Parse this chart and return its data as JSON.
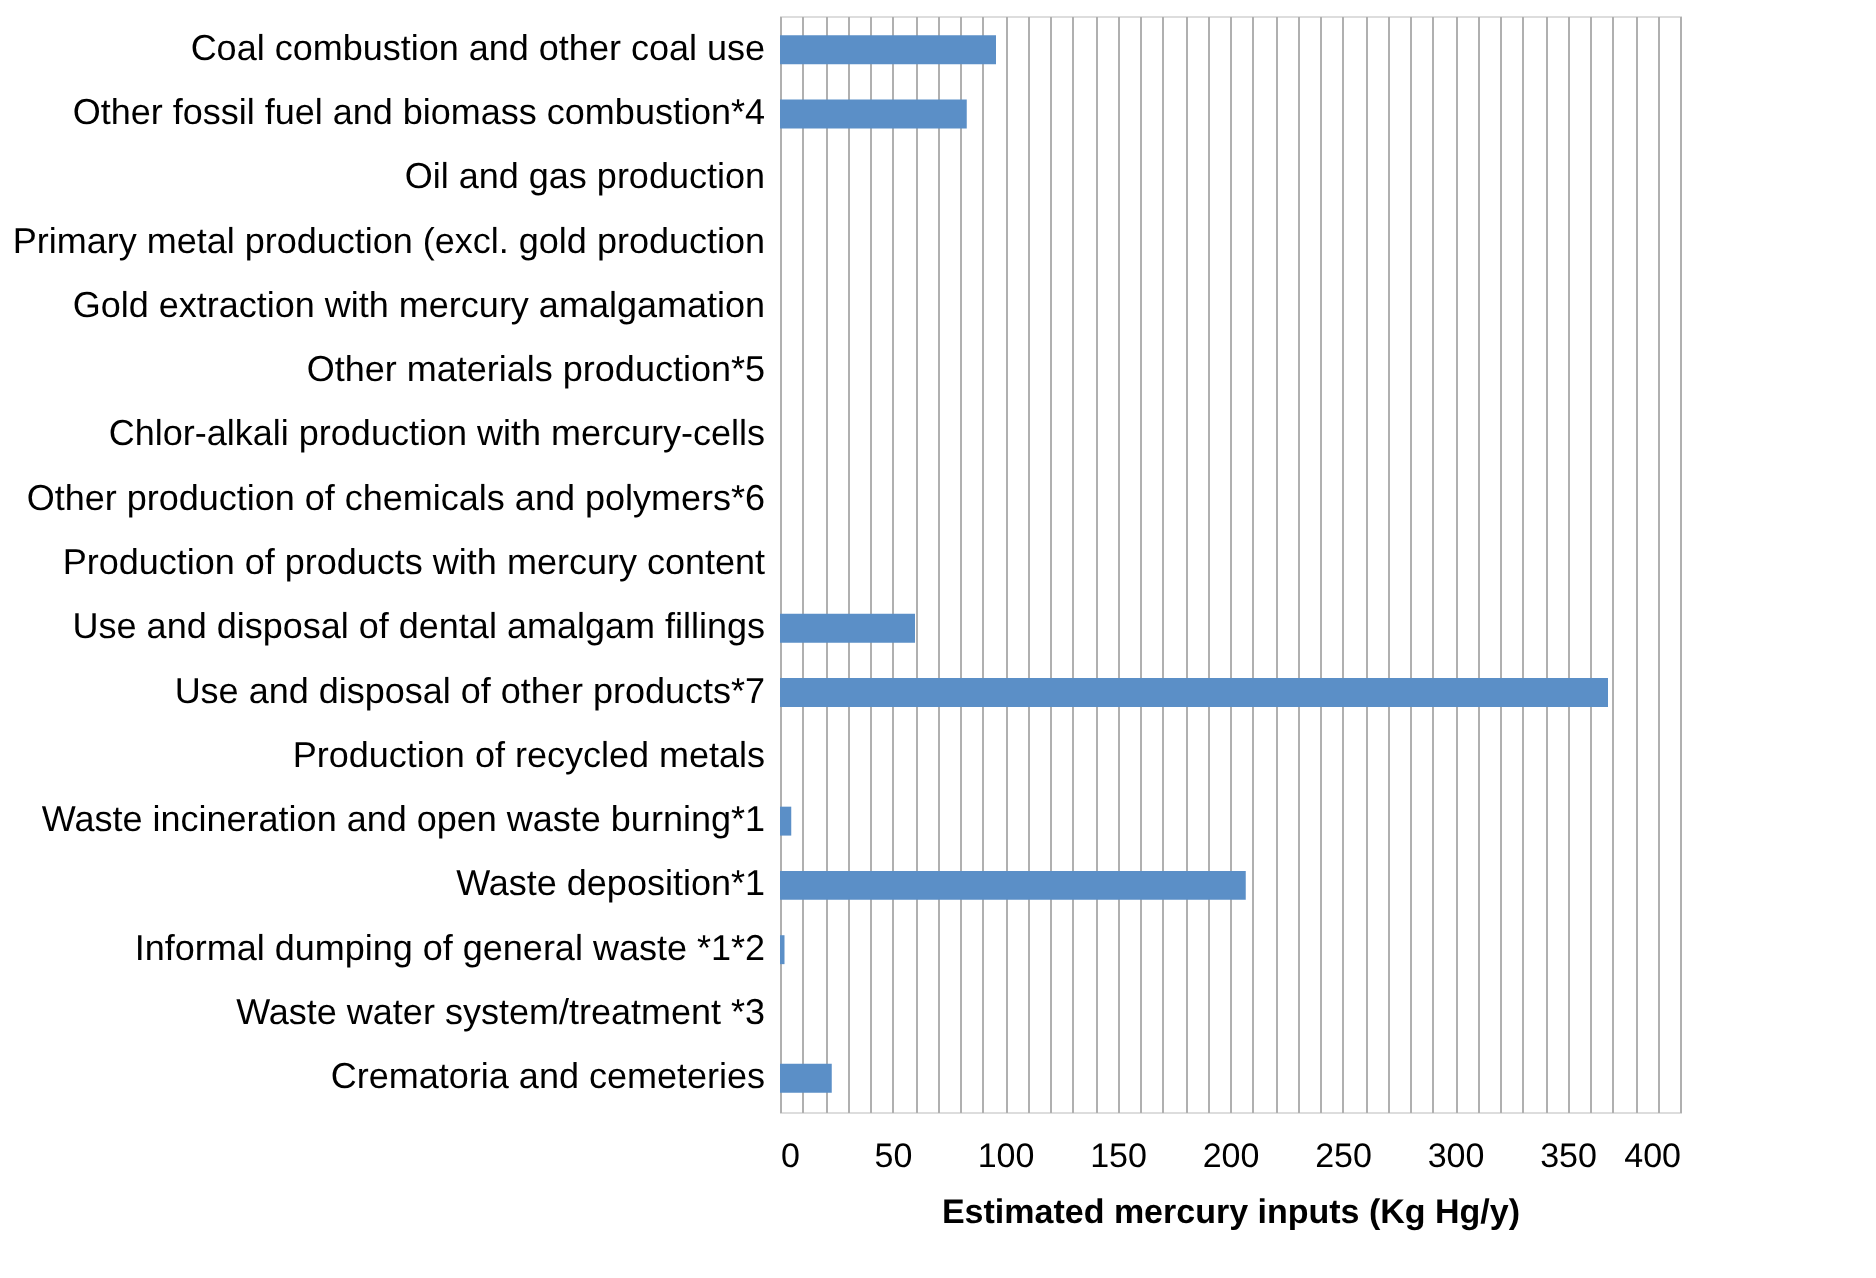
{
  "chart_data": {
    "type": "bar",
    "orientation": "horizontal",
    "xlabel": "Estimated mercury inputs (Kg Hg/y)",
    "categories": [
      "Coal combustion and other coal use",
      "Other fossil fuel and biomass combustion*4",
      "Oil and gas production",
      "Primary metal production (excl. gold production",
      "Gold extraction with mercury amalgamation",
      "Other materials production*5",
      "Chlor-alkali production with mercury-cells",
      "Other production of chemicals and polymers*6",
      "Production of products with mercury content",
      "Use and disposal of dental amalgam fillings",
      "Use and disposal of other products*7",
      "Production of recycled metals",
      "Waste incineration and open waste burning*1",
      "Waste deposition*1",
      "Informal dumping of general waste *1*2",
      "Waste water system/treatment *3",
      "Crematoria and cemeteries"
    ],
    "values": [
      96,
      83,
      null,
      null,
      null,
      null,
      null,
      null,
      null,
      60,
      368,
      null,
      5,
      207,
      2,
      null,
      23
    ],
    "color": "#5b8fc7",
    "xlim": [
      0,
      400
    ],
    "xticks": [
      0,
      {
        "value": 10,
        "label": null
      },
      {
        "value": 20,
        "label": null
      },
      {
        "value": 30,
        "label": null
      },
      {
        "value": 40,
        "label": null
      },
      50,
      {
        "value": 60,
        "label": null
      },
      {
        "value": 70,
        "label": null
      },
      {
        "value": 80,
        "label": null
      },
      {
        "value": 90,
        "label": null
      },
      100,
      {
        "value": 110,
        "label": null
      },
      {
        "value": 120,
        "label": null
      },
      {
        "value": 130,
        "label": null
      },
      {
        "value": 140,
        "label": null
      },
      150,
      {
        "value": 160,
        "label": null
      },
      {
        "value": 170,
        "label": null
      },
      {
        "value": 180,
        "label": null
      },
      {
        "value": 190,
        "label": null
      },
      200,
      {
        "value": 210,
        "label": null
      },
      {
        "value": 220,
        "label": null
      },
      {
        "value": 230,
        "label": null
      },
      {
        "value": 240,
        "label": null
      },
      250,
      {
        "value": 260,
        "label": null
      },
      {
        "value": 270,
        "label": null
      },
      {
        "value": 280,
        "label": null
      },
      {
        "value": 290,
        "label": null
      },
      300,
      {
        "value": 310,
        "label": null
      },
      {
        "value": 320,
        "label": null
      },
      {
        "value": 330,
        "label": null
      },
      {
        "value": 340,
        "label": null
      },
      350,
      {
        "value": 360,
        "label": null
      },
      {
        "value": 370,
        "label": null
      },
      {
        "value": 380,
        "label": null
      },
      {
        "value": 390,
        "label": null
      },
      400
    ],
    "grid": "x"
  }
}
